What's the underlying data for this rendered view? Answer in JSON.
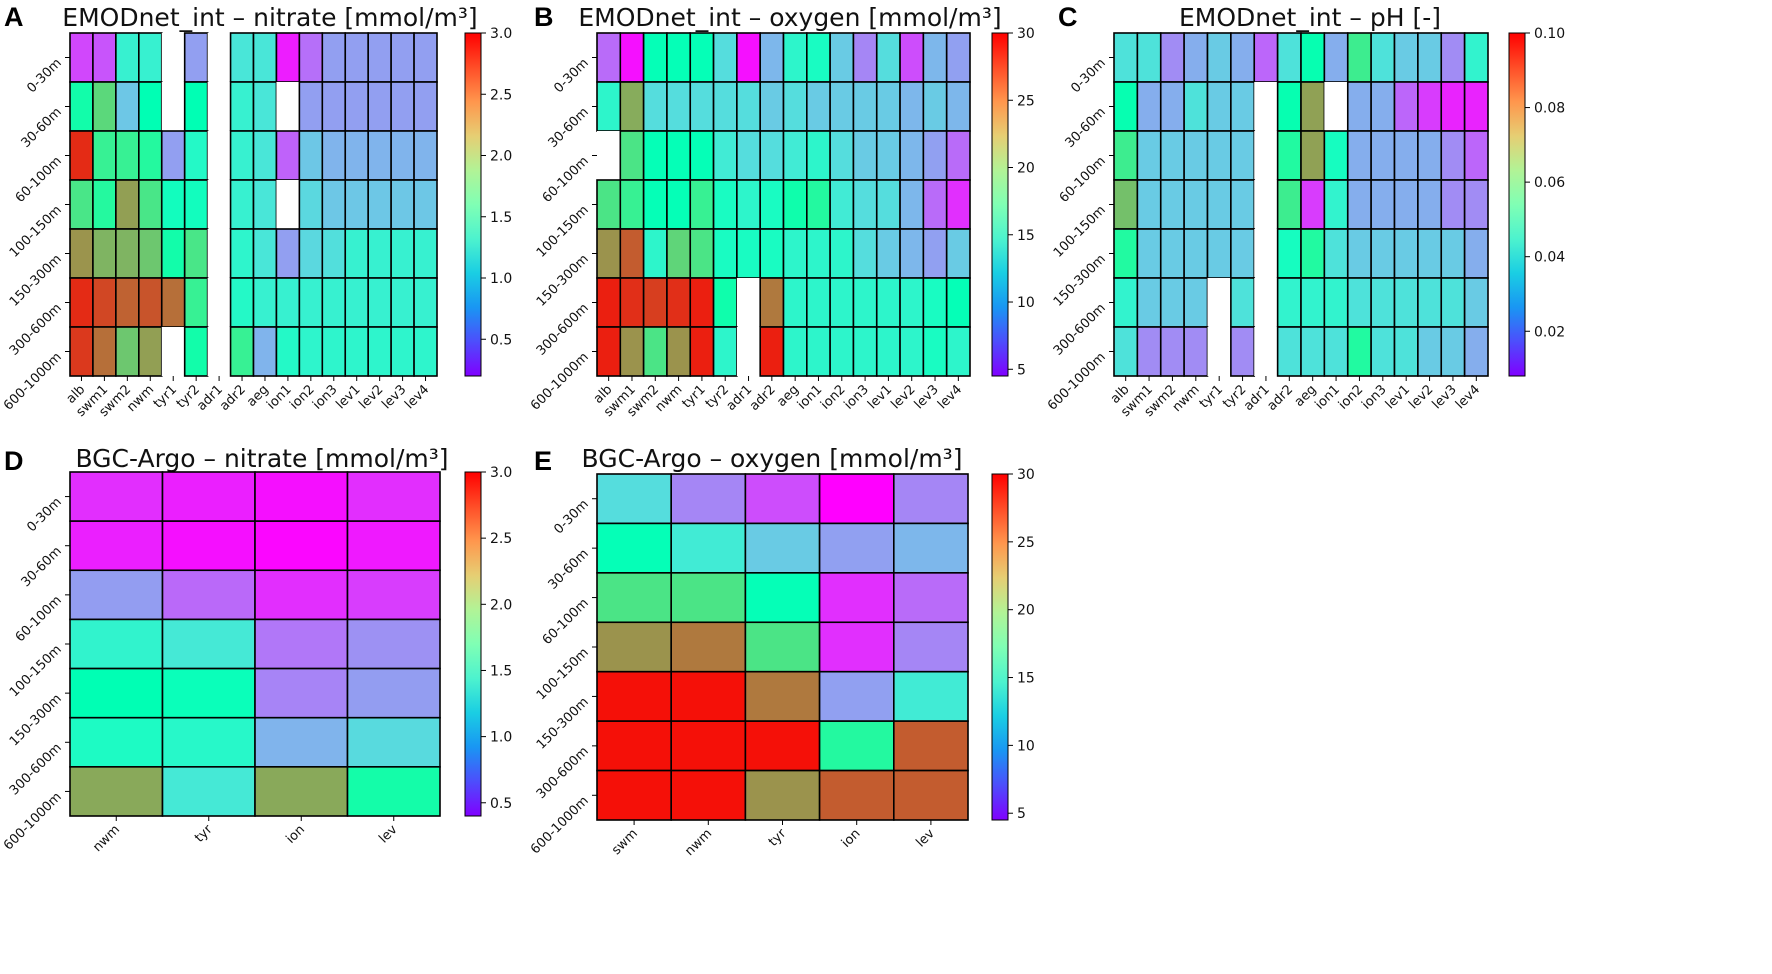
{
  "figure": {
    "description_text": ""
  },
  "chart_data": [
    {
      "letter": "A",
      "type": "heatmap",
      "title": "EMODnet_int – nitrate [mmol/m³]",
      "x": [
        "alb",
        "swm1",
        "swm2",
        "nwm",
        "tyr1",
        "tyr2",
        "adr1",
        "adr2",
        "aeg",
        "ion1",
        "ion2",
        "ion3",
        "lev1",
        "lev2",
        "lev3",
        "lev4"
      ],
      "y": [
        "0-30m",
        "30-60m",
        "60-100m",
        "100-150m",
        "150-300m",
        "300-600m",
        "600-1000m"
      ],
      "vmin": 0.2,
      "vmax": 3.0,
      "colorbar_ticks": [
        0.5,
        1.0,
        1.5,
        2.0,
        2.5,
        3.0
      ],
      "colorbar_labels": [
        "0.5",
        "1.0",
        "1.5",
        "2.0",
        "2.5",
        "3.0"
      ],
      "values": [
        [
          0.45,
          0.5,
          1.3,
          1.3,
          null,
          0.8,
          null,
          1.2,
          1.2,
          0.3,
          0.6,
          0.8,
          0.8,
          0.8,
          0.8,
          0.8
        ],
        [
          1.7,
          2.1,
          1.0,
          1.6,
          null,
          1.6,
          null,
          1.3,
          1.2,
          null,
          0.8,
          0.8,
          0.8,
          0.8,
          0.8,
          0.8
        ],
        [
          2.85,
          1.9,
          1.9,
          1.8,
          0.8,
          1.4,
          null,
          1.3,
          1.2,
          0.55,
          1.0,
          0.9,
          0.9,
          0.9,
          0.9,
          0.9
        ],
        [
          2.0,
          1.8,
          2.4,
          2.0,
          1.5,
          1.5,
          null,
          1.3,
          1.2,
          null,
          1.1,
          1.0,
          1.0,
          1.0,
          1.0,
          1.0
        ],
        [
          2.45,
          2.3,
          2.3,
          2.2,
          1.7,
          2.0,
          null,
          1.35,
          1.2,
          0.8,
          1.1,
          1.15,
          1.3,
          1.3,
          1.3,
          1.3
        ],
        [
          2.85,
          2.75,
          2.65,
          2.7,
          2.6,
          1.9,
          null,
          1.4,
          1.3,
          1.3,
          1.3,
          1.3,
          1.3,
          1.3,
          1.3,
          1.3
        ],
        [
          2.8,
          2.6,
          2.2,
          2.4,
          null,
          1.7,
          null,
          1.9,
          0.9,
          1.4,
          1.35,
          1.35,
          1.35,
          1.35,
          1.35,
          1.35
        ]
      ]
    },
    {
      "letter": "B",
      "type": "heatmap",
      "title": "EMODnet_int – oxygen [mmol/m³]",
      "x": [
        "alb",
        "swm1",
        "swm2",
        "nwm",
        "tyr1",
        "tyr2",
        "adr1",
        "adr2",
        "aeg",
        "ion1",
        "ion2",
        "ion3",
        "lev1",
        "lev2",
        "lev3",
        "lev4"
      ],
      "y": [
        "0-30m",
        "30-60m",
        "60-100m",
        "100-150m",
        "150-300m",
        "300-600m",
        "600-1000m"
      ],
      "vmin": 4.5,
      "vmax": 30,
      "colorbar_ticks": [
        5,
        10,
        15,
        20,
        25,
        30
      ],
      "colorbar_labels": [
        "5",
        "10",
        "15",
        "20",
        "25",
        "30"
      ],
      "values": [
        [
          8,
          5,
          17,
          17,
          17,
          13,
          5,
          11,
          15,
          16,
          12,
          9,
          13,
          7,
          11,
          10
        ],
        [
          15,
          24,
          13,
          13,
          13,
          13,
          13,
          12,
          13,
          12,
          12,
          12,
          12,
          11,
          12,
          11
        ],
        [
          null,
          21,
          17,
          17,
          17,
          14,
          13,
          13,
          14,
          15,
          13,
          12,
          12,
          11,
          10,
          8
        ],
        [
          21,
          20,
          17,
          17,
          20,
          16,
          15,
          16,
          18,
          19,
          14,
          13,
          13,
          11,
          8,
          6
        ],
        [
          25,
          27,
          15,
          22,
          21,
          16,
          16,
          16,
          15,
          15,
          15,
          13,
          12,
          11,
          10,
          12
        ],
        [
          29,
          28.5,
          28,
          28.5,
          29,
          18,
          null,
          26,
          15,
          15,
          15,
          15,
          15,
          15,
          16,
          17
        ],
        [
          29,
          25,
          21,
          25,
          29,
          15,
          null,
          29,
          15,
          15,
          15,
          15,
          15,
          15,
          16,
          15
        ]
      ]
    },
    {
      "letter": "C",
      "type": "heatmap",
      "title": "EMODnet_int – pH [-]",
      "x": [
        "alb",
        "swm1",
        "swm2",
        "nwm",
        "tyr1",
        "tyr2",
        "adr1",
        "adr2",
        "aeg",
        "ion1",
        "ion2",
        "ion3",
        "lev1",
        "lev2",
        "lev3",
        "lev4"
      ],
      "y": [
        "0-30m",
        "30-60m",
        "60-100m",
        "100-150m",
        "150-300m",
        "300-600m",
        "600-1000m"
      ],
      "vmin": 0.008,
      "vmax": 0.1,
      "colorbar_ticks": [
        0.02,
        0.04,
        0.06,
        0.08,
        0.1
      ],
      "colorbar_labels": [
        "0.02",
        "0.04",
        "0.06",
        "0.08",
        "0.10"
      ],
      "values": [
        [
          0.04,
          0.04,
          0.025,
          0.03,
          0.035,
          0.03,
          0.02,
          0.04,
          0.055,
          0.03,
          0.065,
          0.04,
          0.035,
          0.035,
          0.025,
          0.045
        ],
        [
          0.055,
          0.03,
          0.03,
          0.04,
          0.035,
          0.035,
          null,
          0.055,
          0.08,
          null,
          0.03,
          0.03,
          0.02,
          0.015,
          0.012,
          0.012
        ],
        [
          0.065,
          0.035,
          0.035,
          0.035,
          0.035,
          0.035,
          null,
          0.06,
          0.08,
          0.05,
          0.03,
          0.03,
          0.03,
          0.03,
          0.025,
          0.02
        ],
        [
          0.075,
          0.035,
          0.035,
          0.035,
          0.035,
          0.035,
          null,
          0.065,
          0.015,
          0.045,
          0.03,
          0.03,
          0.03,
          0.03,
          0.025,
          0.025
        ],
        [
          0.06,
          0.035,
          0.035,
          0.035,
          0.035,
          0.035,
          null,
          0.05,
          0.06,
          0.04,
          0.035,
          0.035,
          0.035,
          0.035,
          0.035,
          0.03
        ],
        [
          0.045,
          0.035,
          0.035,
          0.035,
          null,
          0.04,
          null,
          0.045,
          0.045,
          0.045,
          0.04,
          0.04,
          0.04,
          0.04,
          0.04,
          0.035
        ],
        [
          0.04,
          0.025,
          0.025,
          0.025,
          null,
          0.025,
          null,
          0.04,
          0.04,
          0.04,
          0.06,
          0.04,
          0.04,
          0.035,
          0.035,
          0.03
        ]
      ]
    },
    {
      "letter": "D",
      "type": "heatmap",
      "title": "BGC-Argo – nitrate [mmol/m³]",
      "x": [
        "nwm",
        "tyr",
        "ion",
        "lev"
      ],
      "y": [
        "0-30m",
        "30-60m",
        "60-100m",
        "100-150m",
        "150-300m",
        "300-600m",
        "600-1000m"
      ],
      "vmin": 0.4,
      "vmax": 3.0,
      "colorbar_ticks": [
        0.5,
        1.0,
        1.5,
        2.0,
        2.5,
        3.0
      ],
      "colorbar_labels": [
        "0.5",
        "1.0",
        "1.5",
        "2.0",
        "2.5",
        "3.0"
      ],
      "values": [
        [
          0.55,
          0.5,
          0.45,
          0.55
        ],
        [
          0.5,
          0.45,
          0.42,
          0.48
        ],
        [
          0.95,
          0.75,
          0.55,
          0.6
        ],
        [
          1.45,
          1.35,
          0.8,
          0.9
        ],
        [
          1.7,
          1.65,
          0.85,
          0.95
        ],
        [
          1.55,
          1.5,
          1.05,
          1.25
        ],
        [
          2.4,
          1.35,
          2.4,
          1.8
        ]
      ]
    },
    {
      "letter": "E",
      "type": "heatmap",
      "title": "BGC-Argo – oxygen [mmol/m³]",
      "x": [
        "swm",
        "nwm",
        "tyr",
        "ion",
        "lev"
      ],
      "y": [
        "0-30m",
        "30-60m",
        "60-100m",
        "100-150m",
        "150-300m",
        "300-600m",
        "600-1000m"
      ],
      "vmin": 4.5,
      "vmax": 30,
      "colorbar_ticks": [
        5,
        10,
        15,
        20,
        25,
        30
      ],
      "colorbar_labels": [
        "5",
        "10",
        "15",
        "20",
        "25",
        "30"
      ],
      "values": [
        [
          13,
          9,
          7,
          4.5,
          9
        ],
        [
          17,
          14,
          12,
          10,
          11
        ],
        [
          21,
          21,
          17,
          6,
          8
        ],
        [
          25,
          26,
          21,
          6,
          9
        ],
        [
          29.5,
          29.5,
          26,
          10,
          14
        ],
        [
          29.5,
          29.5,
          29.5,
          19,
          27
        ],
        [
          29.5,
          29.5,
          25,
          27,
          27
        ]
      ]
    }
  ]
}
